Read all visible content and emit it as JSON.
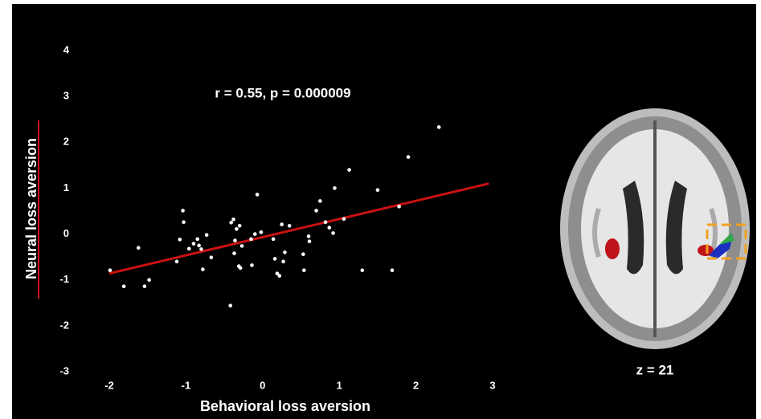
{
  "chart_data": {
    "type": "scatter",
    "annotation": "r = 0.55, p = 0.000009",
    "x_label": "Behavioral loss aversion",
    "y_label": "Neural loss aversion",
    "color": "#ffffff",
    "x": [
      -1.99,
      -1.81,
      -1.62,
      -1.54,
      -1.48,
      -1.12,
      -1.08,
      -1.04,
      -1.03,
      -0.96,
      -0.9,
      -0.85,
      -0.83,
      -0.8,
      -0.78,
      -0.73,
      -0.67,
      -0.41,
      -0.38,
      -0.36,
      -0.34,
      -0.37,
      -0.31,
      -0.29,
      -0.27,
      -0.3,
      -0.42,
      -0.15,
      -0.14,
      -0.1,
      -0.07,
      -0.02,
      0.14,
      0.16,
      0.19,
      0.22,
      0.25,
      0.27,
      0.29,
      0.35,
      0.53,
      0.54,
      0.6,
      0.61,
      0.7,
      0.75,
      0.82,
      0.87,
      0.92,
      0.94,
      1.06,
      1.13,
      1.3,
      1.5,
      1.69,
      1.78,
      1.9,
      2.3
    ],
    "values": [
      -0.79,
      -1.14,
      -0.3,
      -1.14,
      -1.0,
      -0.6,
      -0.12,
      0.51,
      0.26,
      -0.32,
      -0.21,
      -0.11,
      -0.25,
      -0.33,
      -0.77,
      -0.02,
      -0.51,
      0.25,
      0.32,
      -0.14,
      0.11,
      -0.42,
      -0.7,
      -0.74,
      -0.26,
      0.18,
      -1.56,
      -0.11,
      -0.68,
      0,
      0.86,
      0.04,
      -0.11,
      -0.54,
      -0.86,
      -0.91,
      0.21,
      -0.6,
      -0.4,
      0.18,
      -0.44,
      -0.79,
      -0.05,
      -0.16,
      0.51,
      0.72,
      0.26,
      0.14,
      0.02,
      1.0,
      0.33,
      1.4,
      -0.79,
      0.96,
      -0.79,
      0.6,
      1.68,
      2.33
    ],
    "fit": {
      "x": [
        -2,
        2.95
      ],
      "values": [
        -0.86,
        1.1
      ],
      "color": "#cc1111"
    },
    "xlim": [
      -2,
      3
    ],
    "xticks": [
      -2,
      -1,
      0,
      1,
      2,
      3
    ],
    "ylim": [
      -3,
      4
    ],
    "yticks": [
      -3,
      -2,
      -1,
      0,
      1,
      2,
      3,
      4
    ],
    "inset_label": "z = 21"
  }
}
